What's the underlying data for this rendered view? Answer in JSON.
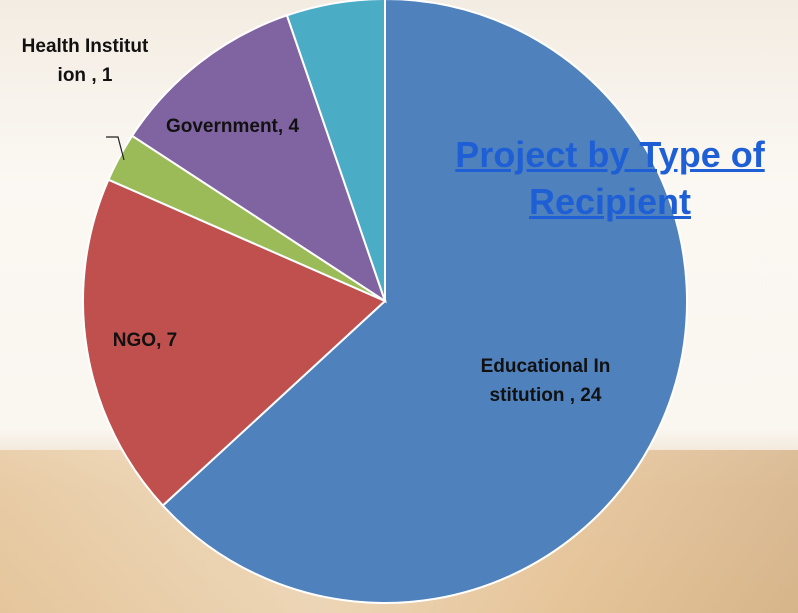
{
  "chart_data": {
    "type": "pie",
    "title": "Project by Type of Recipient",
    "labels": [
      "Educational Institution , 24",
      "NGO, 7",
      "Health Institution , 1",
      "Government, 4",
      null
    ],
    "values": [
      24,
      7,
      1,
      4,
      2
    ],
    "colors": [
      "#4f81bd",
      "#c0504d",
      "#9bbb59",
      "#8064a2",
      "#4bacc6"
    ],
    "start_angle": 0,
    "direction": "clockwise"
  }
}
